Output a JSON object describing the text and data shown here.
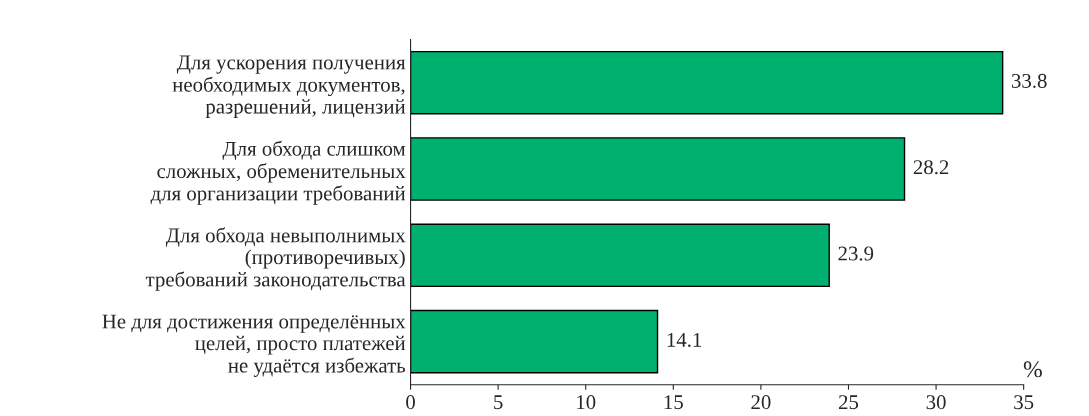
{
  "chart_data": {
    "type": "bar",
    "orientation": "horizontal",
    "categories": [
      "Для ускорения получения\nнеобходимых документов,\nразрешений, лицензий",
      "Для обхода слишком\nсложных, обременительных\nдля организации требований",
      "Для обхода невыполнимых\n(противоречивых)\nтребований законодательства",
      "Не для достижения определённых\nцелей, просто платежей\nне удаётся избежать"
    ],
    "values": [
      33.8,
      28.2,
      23.9,
      14.1
    ],
    "color": "#00b06e",
    "xlabel": "%",
    "xlim": [
      0,
      35
    ],
    "xticks": [
      0,
      5,
      10,
      15,
      20,
      25,
      30,
      35
    ],
    "data_labels": true,
    "grid": false,
    "legend": false
  }
}
